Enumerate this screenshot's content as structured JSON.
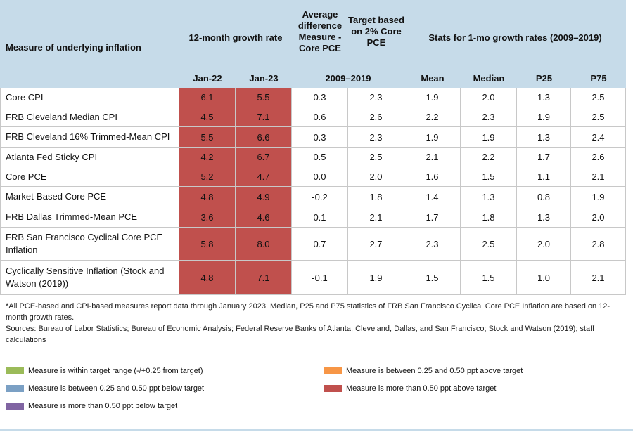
{
  "table": {
    "header": {
      "measure": "Measure of underlying inflation",
      "growth_rate": "12-month growth rate",
      "avg_diff": "Average difference Measure - Core PCE",
      "target": "Target based on 2% Core PCE",
      "stats": "Stats for 1-mo growth rates (2009–2019)",
      "sub": [
        "Jan-22",
        "Jan-23",
        "2009–2019",
        "Mean",
        "Median",
        "P25",
        "P75"
      ]
    },
    "highlight_color": "#c0504d",
    "rows": [
      [
        "Core CPI",
        "6.1",
        "5.5",
        "0.3",
        "2.3",
        "1.9",
        "2.0",
        "1.3",
        "2.5"
      ],
      [
        "FRB Cleveland Median CPI",
        "4.5",
        "7.1",
        "0.6",
        "2.6",
        "2.2",
        "2.3",
        "1.9",
        "2.5"
      ],
      [
        "FRB Cleveland 16% Trimmed-Mean CPI",
        "5.5",
        "6.6",
        "0.3",
        "2.3",
        "1.9",
        "1.9",
        "1.3",
        "2.4"
      ],
      [
        "Atlanta Fed Sticky CPI",
        "4.2",
        "6.7",
        "0.5",
        "2.5",
        "2.1",
        "2.2",
        "1.7",
        "2.6"
      ],
      [
        "Core PCE",
        "5.2",
        "4.7",
        "0.0",
        "2.0",
        "1.6",
        "1.5",
        "1.1",
        "2.1"
      ],
      [
        "Market-Based Core PCE",
        "4.8",
        "4.9",
        "-0.2",
        "1.8",
        "1.4",
        "1.3",
        "0.8",
        "1.9"
      ],
      [
        "FRB Dallas Trimmed-Mean PCE",
        "3.6",
        "4.6",
        "0.1",
        "2.1",
        "1.7",
        "1.8",
        "1.3",
        "2.0"
      ],
      [
        "FRB San Francisco Cyclical Core PCE Inflation",
        "5.8",
        "8.0",
        "0.7",
        "2.7",
        "2.3",
        "2.5",
        "2.0",
        "2.8"
      ],
      [
        "Cyclically Sensitive Inflation (Stock and Watson (2019))",
        "4.8",
        "7.1",
        "-0.1",
        "1.9",
        "1.5",
        "1.5",
        "1.0",
        "2.1"
      ]
    ]
  },
  "notes": [
    "*All PCE-based and CPI-based measures report data through January 2023. Median, P25 and P75 statistics of FRB San Francisco Cyclical Core PCE Inflation are based on 12-month growth rates.",
    "Sources: Bureau of Labor Statistics; Bureau of Economic Analysis; Federal Reserve Banks of Atlanta, Cleveland, Dallas, and San Francisco; Stock and Watson (2019); staff calculations"
  ],
  "legend": [
    {
      "label": "Measure is within target range (-/+0.25 from target)",
      "color": "#9bbb59"
    },
    {
      "label": "Measure is between 0.25 and 0.50 ppt above target",
      "color": "#f79646"
    },
    {
      "label": "Measure is between 0.25 and 0.50 ppt below target",
      "color": "#7ba0c4"
    },
    {
      "label": "Measure is more than 0.50 ppt above target",
      "color": "#c0504d"
    },
    {
      "label": "Measure is more than 0.50 ppt below target",
      "color": "#8064a2"
    }
  ]
}
